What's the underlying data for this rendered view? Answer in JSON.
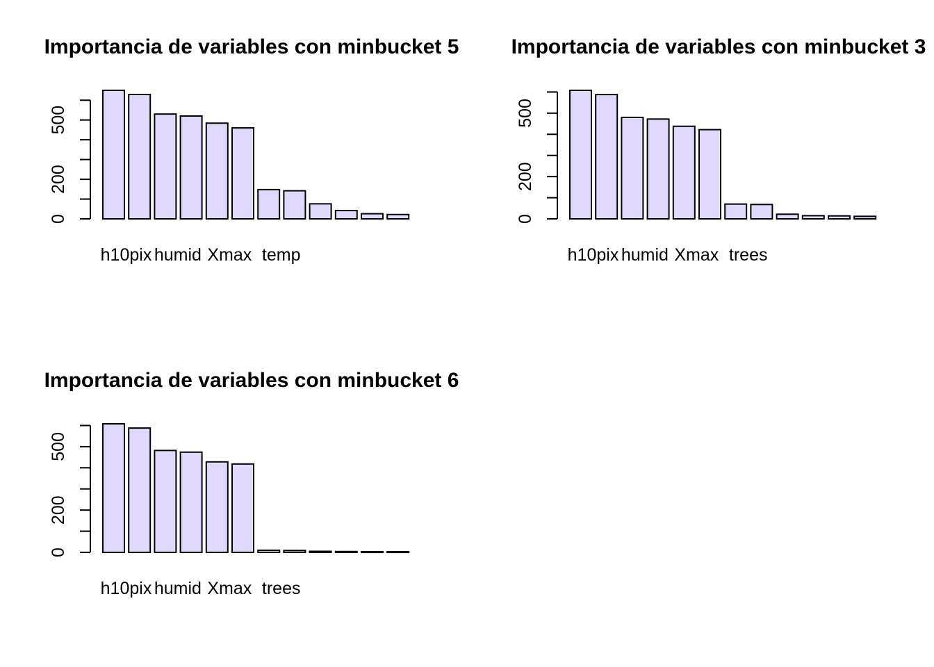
{
  "chart_data": [
    {
      "type": "bar",
      "title": "Importancia de variables con minbucket 5",
      "categories": [
        "h10pix",
        "",
        "humid",
        "",
        "Xmax",
        "",
        "temp",
        "",
        "",
        "",
        "",
        ""
      ],
      "values": [
        650,
        629,
        530,
        520,
        484,
        460,
        148,
        142,
        76,
        42,
        26,
        22
      ],
      "yticks": [
        0,
        200,
        500
      ],
      "ylim": [
        0,
        650
      ],
      "bar_color": "#e1d9fb",
      "grid": false
    },
    {
      "type": "bar",
      "title": "Importancia de variables con minbucket 3",
      "categories": [
        "h10pix",
        "",
        "humid",
        "",
        "Xmax",
        "",
        "trees",
        "",
        "",
        "",
        "",
        ""
      ],
      "values": [
        608,
        588,
        480,
        472,
        438,
        422,
        70,
        68,
        22,
        15,
        14,
        12
      ],
      "yticks": [
        0,
        200,
        500
      ],
      "ylim": [
        0,
        608
      ],
      "bar_color": "#e1d9fb",
      "grid": false
    },
    {
      "type": "bar",
      "title": "Importancia de variables con minbucket 6",
      "categories": [
        "h10pix",
        "",
        "humid",
        "",
        "Xmax",
        "",
        "trees",
        "",
        "",
        "",
        "",
        ""
      ],
      "values": [
        608,
        588,
        482,
        474,
        428,
        418,
        10,
        9,
        5,
        4,
        3,
        3
      ],
      "yticks": [
        0,
        200,
        500
      ],
      "ylim": [
        0,
        608
      ],
      "bar_color": "#e1d9fb",
      "grid": false
    }
  ]
}
